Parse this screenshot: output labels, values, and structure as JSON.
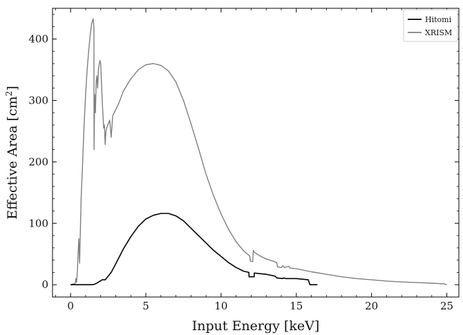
{
  "chart_data": {
    "type": "line",
    "xlabel": "Input Energy [keV]",
    "ylabel": "Effective Area [cm",
    "ylabel_sup": "2",
    "ylabel_close": "]",
    "xlim": [
      -1.2,
      25.8
    ],
    "ylim": [
      -20,
      450
    ],
    "xticks": [
      0,
      5,
      10,
      15,
      20,
      25
    ],
    "yticks": [
      0,
      100,
      200,
      300,
      400
    ],
    "xtick_labels": [
      "0",
      "5",
      "10",
      "15",
      "20",
      "25"
    ],
    "ytick_labels": [
      "0",
      "100",
      "200",
      "300",
      "400"
    ],
    "legend_position": "top-right",
    "series": [
      {
        "name": "Hitomi",
        "color": "#000000",
        "x": [
          0,
          0.3,
          1.4,
          1.55,
          1.7,
          1.9,
          2.1,
          2.3,
          2.5,
          2.7,
          3.0,
          3.5,
          4.0,
          4.5,
          5.0,
          5.5,
          6.0,
          6.5,
          7.0,
          7.5,
          8.0,
          8.5,
          9.0,
          9.5,
          10.0,
          10.5,
          11.0,
          11.5,
          11.85,
          11.86,
          12.2,
          12.21,
          13.0,
          13.6,
          13.7,
          13.75,
          14.1,
          14.15,
          14.3,
          15.0,
          15.8,
          15.9,
          16.4
        ],
        "values": [
          0,
          0,
          0,
          0.5,
          2,
          5,
          8,
          8,
          14,
          20,
          34,
          58,
          78,
          95,
          107,
          113,
          116,
          116,
          112,
          104,
          92,
          80,
          68,
          56,
          46,
          36,
          28,
          22,
          20,
          13,
          13,
          19,
          17,
          14,
          11,
          11,
          10,
          11,
          10,
          10,
          8,
          0,
          0
        ]
      },
      {
        "name": "XRISM",
        "color": "#7f7f7f",
        "x": [
          0,
          0.3,
          0.35,
          0.4,
          0.45,
          0.5,
          0.55,
          0.6,
          0.7,
          0.8,
          0.9,
          1.0,
          1.1,
          1.2,
          1.3,
          1.4,
          1.5,
          1.55,
          1.56,
          1.6,
          1.65,
          1.7,
          1.75,
          1.8,
          1.85,
          1.9,
          1.95,
          2.0,
          2.1,
          2.2,
          2.25,
          2.3,
          2.35,
          2.4,
          2.5,
          2.6,
          2.7,
          2.8,
          3.0,
          3.2,
          3.5,
          4.0,
          4.5,
          5.0,
          5.5,
          6.0,
          6.5,
          7.0,
          7.5,
          8.0,
          8.5,
          9.0,
          9.5,
          10.0,
          10.5,
          11.0,
          11.5,
          11.9,
          11.95,
          12.1,
          12.15,
          12.2,
          12.5,
          13.0,
          13.5,
          13.7,
          13.75,
          14.0,
          14.1,
          14.2,
          14.5,
          14.6,
          15.0,
          16.0,
          17.0,
          18.0,
          19.0,
          20.0,
          21.0,
          22.0,
          23.0,
          24.0,
          24.8,
          25.0
        ],
        "values": [
          0,
          2,
          10,
          4,
          20,
          50,
          75,
          35,
          140,
          200,
          260,
          310,
          350,
          380,
          405,
          425,
          433,
          420,
          220,
          310,
          280,
          330,
          340,
          320,
          350,
          358,
          365,
          360,
          300,
          255,
          260,
          228,
          250,
          255,
          262,
          268,
          240,
          275,
          285,
          295,
          315,
          335,
          350,
          358,
          360,
          357,
          348,
          330,
          300,
          262,
          222,
          180,
          145,
          115,
          90,
          70,
          55,
          47,
          38,
          38,
          56,
          53,
          48,
          42,
          38,
          36,
          29,
          28,
          31,
          28,
          30,
          27,
          26,
          21,
          17,
          13,
          10,
          8,
          6,
          4.5,
          3.5,
          2.5,
          1.5,
          0
        ]
      }
    ]
  }
}
